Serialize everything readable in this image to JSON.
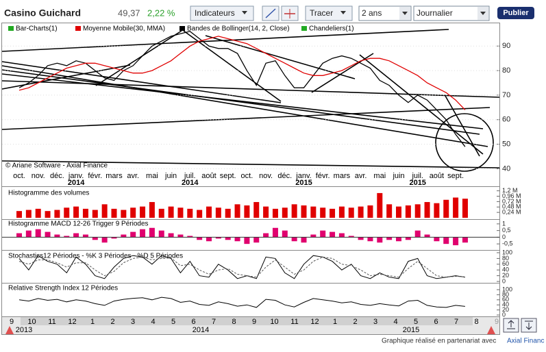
{
  "toolbar": {
    "title": "Casino Guichard",
    "price": "49,37",
    "change": "2,22 %",
    "indicators": "Indicateurs",
    "draw": "Tracer",
    "period": "2 ans",
    "interval": "Journalier",
    "publish": "Publier"
  },
  "chart_data": [
    {
      "type": "line",
      "watermark": "© Ariane Software - Axial Finance",
      "categories": [
        "oct.",
        null,
        "nov.",
        null,
        "déc.",
        null,
        "janv.",
        null,
        "févr.",
        null,
        "mars",
        null,
        "avr.",
        null,
        "mai",
        null,
        "juin",
        null,
        "juil.",
        null,
        "août",
        null,
        "sept.",
        null,
        "oct.",
        null,
        "nov.",
        null,
        "déc.",
        null,
        "janv.",
        null,
        "févr.",
        null,
        "mars",
        null,
        "avr.",
        null,
        "mai",
        null,
        "juin",
        null,
        "juil.",
        null,
        "août",
        null,
        "sept.",
        null
      ],
      "years": [
        "2014",
        "2014",
        "2015",
        "2015"
      ],
      "series": [
        {
          "name": "Bar-Charts(1)",
          "color": "#000000",
          "values": [
            73,
            75,
            78,
            82,
            83,
            82,
            84,
            83,
            80,
            77,
            76,
            80,
            82,
            86,
            90,
            92,
            94,
            95,
            96,
            93,
            90,
            89,
            89,
            87,
            80,
            74,
            83,
            84,
            78,
            73,
            73,
            78,
            83,
            85,
            86,
            85,
            83,
            81,
            76,
            74,
            70,
            67,
            70,
            68,
            64,
            60,
            54,
            49
          ]
        },
        {
          "name": "Moyenne Mobile(30, MMA)",
          "color": "#e00000",
          "values": [
            72,
            73,
            75,
            77,
            79,
            81,
            82,
            83,
            83,
            82,
            81,
            80,
            79,
            79,
            80,
            82,
            84,
            87,
            90,
            92,
            93,
            94,
            93,
            92,
            91,
            89,
            87,
            85,
            83,
            81,
            79,
            78,
            78,
            79,
            80,
            82,
            84,
            85,
            85,
            84,
            82,
            80,
            78,
            75,
            73,
            71,
            68,
            64
          ]
        }
      ],
      "other_legend": [
        {
          "name": "Bandes de Bollinger(14, 2, Close)",
          "color": "#000000"
        },
        {
          "name": "Chandeliers(1)",
          "color": "#22aa22"
        }
      ],
      "ylim": [
        39,
        99
      ],
      "yticks": [
        40,
        50,
        60,
        70,
        80,
        90
      ]
    },
    {
      "type": "bar",
      "title": "Histogramme des volumes",
      "color": "#e00000",
      "values": [
        0.3,
        0.35,
        0.4,
        0.3,
        0.35,
        0.45,
        0.5,
        0.4,
        0.35,
        0.6,
        0.4,
        0.35,
        0.45,
        0.5,
        0.7,
        0.4,
        0.5,
        0.45,
        0.4,
        0.35,
        0.5,
        0.45,
        0.4,
        0.6,
        0.55,
        0.7,
        0.5,
        0.4,
        0.45,
        0.6,
        0.55,
        0.5,
        0.45,
        0.4,
        0.5,
        0.45,
        0.5,
        0.55,
        1.1,
        0.6,
        0.5,
        0.55,
        0.6,
        0.7,
        0.65,
        0.8,
        0.9,
        0.85
      ],
      "ylim": [
        0,
        1.25
      ],
      "yticks": [
        {
          "value": 1.2,
          "label": "1,2 M"
        },
        {
          "value": 0.96,
          "label": "0,96 M"
        },
        {
          "value": 0.72,
          "label": "0,72 M"
        },
        {
          "value": 0.48,
          "label": "0,48 M"
        },
        {
          "value": 0.24,
          "label": "0,24 M"
        }
      ]
    },
    {
      "type": "bar",
      "title": "Histogramme MACD 12-26   Trigger 9 Périodes",
      "color": "#e0006e",
      "values": [
        0.3,
        0.5,
        0.6,
        0.4,
        0.2,
        0.1,
        0.3,
        0.2,
        -0.2,
        -0.4,
        -0.1,
        0.2,
        0.4,
        0.6,
        0.7,
        0.5,
        0.3,
        0.2,
        0.1,
        -0.2,
        -0.3,
        -0.1,
        -0.2,
        -0.3,
        -0.5,
        -0.4,
        0.3,
        0.7,
        0.5,
        -0.3,
        -0.4,
        0.2,
        0.5,
        0.4,
        0.3,
        0.1,
        -0.2,
        -0.3,
        -0.4,
        -0.2,
        -0.3,
        -0.2,
        0.5,
        0.2,
        -0.3,
        -0.5,
        -0.6,
        -0.4
      ],
      "ylim": [
        -0.8,
        1.2
      ],
      "yticks": [
        1,
        {
          "value": 0.5,
          "label": "0,5"
        },
        0,
        {
          "value": -0.5,
          "label": "-0,5"
        }
      ]
    },
    {
      "type": "line",
      "title": "Stochastics12 Périodes  -  %K 3 Périodes  -  %D 5 Périodes",
      "series": [
        {
          "color": "#000000",
          "values": [
            80,
            40,
            90,
            70,
            60,
            30,
            85,
            60,
            20,
            10,
            50,
            80,
            90,
            85,
            60,
            90,
            80,
            30,
            70,
            20,
            15,
            60,
            40,
            10,
            20,
            10,
            85,
            80,
            30,
            10,
            60,
            90,
            85,
            70,
            40,
            60,
            20,
            10,
            30,
            15,
            10,
            70,
            80,
            20,
            10,
            15,
            20,
            15
          ]
        },
        {
          "color": "#555555",
          "dashed": true,
          "values": [
            70,
            60,
            75,
            75,
            65,
            50,
            65,
            65,
            40,
            20,
            35,
            65,
            80,
            85,
            75,
            80,
            82,
            55,
            60,
            40,
            25,
            40,
            45,
            25,
            20,
            15,
            50,
            75,
            50,
            25,
            40,
            70,
            85,
            80,
            60,
            55,
            40,
            20,
            25,
            20,
            15,
            45,
            70,
            45,
            20,
            15,
            18,
            16
          ]
        }
      ],
      "ylim": [
        0,
        100
      ],
      "yticks": [
        100,
        80,
        60,
        40,
        20,
        0
      ]
    },
    {
      "type": "line",
      "title": "Relative Strength Index 12 Périodes",
      "series": [
        {
          "color": "#000000",
          "values": [
            60,
            55,
            65,
            58,
            62,
            52,
            60,
            55,
            45,
            38,
            55,
            62,
            66,
            68,
            60,
            70,
            65,
            50,
            55,
            42,
            38,
            52,
            45,
            35,
            40,
            30,
            62,
            58,
            40,
            32,
            50,
            65,
            60,
            55,
            48,
            52,
            42,
            38,
            45,
            40,
            36,
            55,
            58,
            38,
            32,
            30,
            38,
            34
          ]
        }
      ],
      "ylim": [
        0,
        100
      ],
      "yticks": [
        100,
        80,
        60,
        40,
        20,
        0
      ]
    }
  ],
  "navigator": {
    "months": [
      "9",
      "10",
      "11",
      "12",
      "1",
      "2",
      "3",
      "4",
      "5",
      "6",
      "7",
      "8",
      "9",
      "10",
      "11",
      "12",
      "1",
      "2",
      "3",
      "4",
      "5",
      "6",
      "7",
      "8",
      "9"
    ],
    "years": [
      "2013",
      "2014",
      "2015"
    ]
  },
  "footer": {
    "text": "Graphique réalisé en partenariat avec",
    "link": "Axial Financ"
  }
}
